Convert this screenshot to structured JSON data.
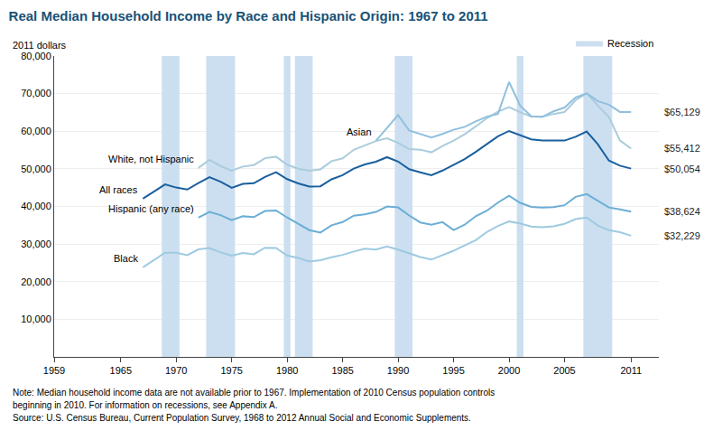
{
  "chart_data": {
    "type": "line",
    "title": "Real Median Household Income by Race and Hispanic Origin: 1967 to 2011",
    "ylabel": "2011 dollars",
    "series": [
      {
        "name": "Black",
        "color": "#9ecae1",
        "x": [
          1967,
          1968,
          1969,
          1970,
          1971,
          1972,
          1973,
          1974,
          1975,
          1976,
          1977,
          1978,
          1979,
          1980,
          1981,
          1982,
          1983,
          1984,
          1985,
          1986,
          1987,
          1988,
          1989,
          1990,
          1991,
          1992,
          1993,
          1994,
          1995,
          1996,
          1997,
          1998,
          1999,
          2000,
          2001,
          2002,
          2003,
          2004,
          2005,
          2006,
          2007,
          2008,
          2009,
          2010,
          2011
        ],
        "values": [
          23818,
          25765,
          27697,
          27669,
          27048,
          28584,
          28919,
          27778,
          26931,
          27612,
          27271,
          29025,
          28958,
          26972,
          26290,
          25376,
          25717,
          26498,
          27117,
          28019,
          28762,
          28524,
          29374,
          28524,
          27472,
          26541,
          25869,
          27001,
          28219,
          29640,
          31041,
          33211,
          34800,
          36001,
          35489,
          34681,
          34491,
          34724,
          35387,
          36614,
          37048,
          34919,
          33674,
          33137,
          32229
        ],
        "value_labels": [
          null,
          null,
          null,
          null,
          null,
          null,
          null,
          null,
          null,
          null,
          null,
          null,
          null,
          null,
          null,
          null,
          null,
          null,
          null,
          null,
          null,
          null,
          null,
          null,
          null,
          null,
          null,
          null,
          null,
          null,
          null,
          null,
          null,
          null,
          null,
          null,
          null,
          null,
          null,
          null,
          null,
          null,
          null,
          null,
          "$32,229"
        ]
      },
      {
        "name": "Hispanic (any race)",
        "color": "#6baed6",
        "x": [
          1972,
          1973,
          1974,
          1975,
          1976,
          1977,
          1978,
          1979,
          1980,
          1981,
          1982,
          1983,
          1984,
          1985,
          1986,
          1987,
          1988,
          1989,
          1990,
          1991,
          1992,
          1993,
          1994,
          1995,
          1996,
          1997,
          1998,
          1999,
          2000,
          2001,
          2002,
          2003,
          2004,
          2005,
          2006,
          2007,
          2008,
          2009,
          2010,
          2011
        ],
        "values": [
          37038,
          38521,
          37688,
          36360,
          37386,
          37157,
          38789,
          38938,
          37059,
          35466,
          33695,
          33060,
          34993,
          35836,
          37558,
          37895,
          38547,
          39977,
          39740,
          37598,
          35743,
          35116,
          35820,
          33741,
          35135,
          37423,
          38859,
          41031,
          42853,
          40958,
          39882,
          39699,
          39802,
          40316,
          42555,
          43270,
          41490,
          39730,
          39241,
          38624
        ],
        "value_labels": [
          null,
          null,
          null,
          null,
          null,
          null,
          null,
          null,
          null,
          null,
          null,
          null,
          null,
          null,
          null,
          null,
          null,
          null,
          null,
          null,
          null,
          null,
          null,
          null,
          null,
          null,
          null,
          null,
          null,
          null,
          null,
          null,
          null,
          null,
          null,
          null,
          null,
          null,
          null,
          "$38,624"
        ]
      },
      {
        "name": "White, not Hispanic",
        "color": "#aaccdd",
        "x": [
          1972,
          1973,
          1974,
          1975,
          1976,
          1977,
          1978,
          1979,
          1980,
          1981,
          1982,
          1983,
          1984,
          1985,
          1986,
          1987,
          1988,
          1989,
          1990,
          1991,
          1992,
          1993,
          1994,
          1995,
          1996,
          1997,
          1998,
          1999,
          2000,
          2001,
          2002,
          2003,
          2004,
          2005,
          2006,
          2007,
          2008,
          2009,
          2010,
          2011
        ],
        "values": [
          50246,
          52378,
          50752,
          49481,
          50602,
          51010,
          52821,
          53239,
          51100,
          50018,
          49498,
          49868,
          52038,
          52773,
          55070,
          56278,
          57384,
          58128,
          56895,
          55237,
          55099,
          54396,
          56093,
          57530,
          59210,
          61278,
          63475,
          65196,
          66418,
          65080,
          63918,
          63836,
          64589,
          65097,
          68226,
          70116,
          66818,
          63793,
          57519,
          55412
        ],
        "value_labels": [
          null,
          null,
          null,
          null,
          null,
          null,
          null,
          null,
          null,
          null,
          null,
          null,
          null,
          null,
          null,
          null,
          null,
          null,
          null,
          null,
          null,
          null,
          null,
          null,
          null,
          null,
          null,
          null,
          null,
          null,
          null,
          null,
          null,
          null,
          null,
          null,
          null,
          null,
          null,
          "$55,412"
        ]
      },
      {
        "name": "Asian",
        "color": "#90c0dd",
        "x": [
          1988,
          1989,
          1990,
          1991,
          1992,
          1993,
          1994,
          1995,
          1996,
          1997,
          1998,
          1999,
          2000,
          2001,
          2002,
          2003,
          2004,
          2005,
          2006,
          2007,
          2008,
          2009,
          2010,
          2011
        ],
        "values": [
          57458,
          60920,
          64308,
          60184,
          59173,
          58352,
          59285,
          60397,
          61163,
          62625,
          63879,
          64589,
          73093,
          66809,
          63956,
          63819,
          65286,
          66301,
          68957,
          70069,
          68004,
          67063,
          65129,
          65129
        ],
        "value_labels": [
          null,
          null,
          null,
          null,
          null,
          null,
          null,
          null,
          null,
          null,
          null,
          null,
          null,
          null,
          null,
          null,
          null,
          null,
          null,
          null,
          null,
          null,
          null,
          "$65,129"
        ]
      },
      {
        "name": "All races",
        "color": "#1a5f9e",
        "x": [
          1967,
          1968,
          1969,
          1970,
          1971,
          1972,
          1973,
          1974,
          1975,
          1976,
          1977,
          1978,
          1979,
          1980,
          1981,
          1982,
          1983,
          1984,
          1985,
          1986,
          1987,
          1988,
          1989,
          1990,
          1991,
          1992,
          1993,
          1994,
          1995,
          1996,
          1997,
          1998,
          1999,
          2000,
          2001,
          2002,
          2003,
          2004,
          2005,
          2006,
          2007,
          2008,
          2009,
          2010,
          2011
        ],
        "values": [
          42056,
          44025,
          45856,
          45020,
          44489,
          46217,
          47776,
          46559,
          44958,
          46002,
          46176,
          47845,
          49081,
          47257,
          46125,
          45265,
          45358,
          47202,
          48299,
          50061,
          51178,
          51901,
          53106,
          51940,
          49896,
          49082,
          48302,
          49545,
          51126,
          52571,
          54494,
          56483,
          58665,
          60068,
          58894,
          57852,
          57543,
          57471,
          57512,
          58526,
          59938,
          56543,
          52195,
          50831,
          50054
        ],
        "value_labels": [
          null,
          null,
          null,
          null,
          null,
          null,
          null,
          null,
          null,
          null,
          null,
          null,
          null,
          null,
          null,
          null,
          null,
          null,
          null,
          null,
          null,
          null,
          null,
          null,
          null,
          null,
          null,
          null,
          null,
          null,
          null,
          null,
          null,
          null,
          null,
          null,
          null,
          null,
          null,
          null,
          null,
          null,
          null,
          null,
          "$50,054"
        ]
      }
    ],
    "recession_bands": [
      [
        1969,
        1970
      ],
      [
        1973,
        1975
      ],
      [
        1980,
        1980
      ],
      [
        1981,
        1982
      ],
      [
        1990,
        1991
      ],
      [
        2001,
        2001
      ],
      [
        2007,
        2009
      ]
    ],
    "recession_label": "Recession",
    "recession_color": "#ccdff0",
    "legend": "upper right",
    "grid": true,
    "xlim": [
      1959,
      2013.5
    ],
    "ylim": [
      0,
      80000
    ],
    "xticks": [
      1959,
      1965,
      1970,
      1975,
      1980,
      1985,
      1990,
      1995,
      2000,
      2005,
      2011
    ],
    "yticks": [
      {
        "value": 10000,
        "label": "10,000"
      },
      {
        "value": 20000,
        "label": "20,000"
      },
      {
        "value": 30000,
        "label": "30,000"
      },
      {
        "value": 40000,
        "label": "40,000"
      },
      {
        "value": 50000,
        "label": "50,000"
      },
      {
        "value": 60000,
        "label": "60,000"
      },
      {
        "value": 70000,
        "label": "70,000"
      },
      {
        "value": 80000,
        "label": "80,000"
      }
    ],
    "title_color": "#1a5276",
    "annotations": [
      "Note: Median household income data are not available prior to 1967. Implementation of 2010 Census population controls",
      "beginning in 2010. For information on recessions, see Appendix A.",
      "Source: U.S. Census Bureau, Current Population Survey, 1968 to 2012 Annual Social and Economic Supplements."
    ]
  }
}
